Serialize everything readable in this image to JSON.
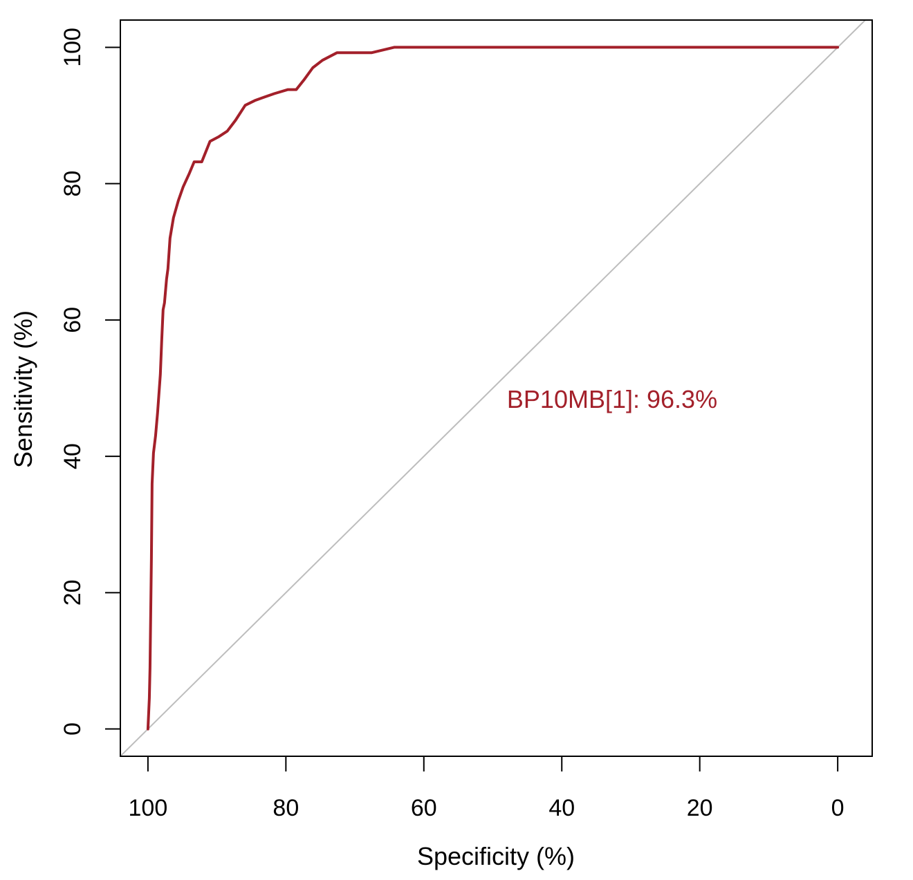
{
  "chart_data": {
    "type": "line",
    "title": "",
    "xlabel": "Specificity (%)",
    "ylabel": "Sensitivity (%)",
    "x_reversed": true,
    "xlim": [
      104,
      -5
    ],
    "ylim": [
      -4,
      104
    ],
    "x_ticks": [
      100,
      80,
      60,
      40,
      20,
      0
    ],
    "y_ticks": [
      0,
      20,
      40,
      60,
      80,
      100
    ],
    "grid": false,
    "colors": {
      "roc": "#a3202a",
      "diagonal": "#bdbdbd",
      "axis": "#000000"
    },
    "annotation": {
      "text": "BP10MB[1]: 96.3%"
    },
    "series": [
      {
        "specificity": [
          100,
          99.8,
          99.7,
          99.6,
          99.5,
          99.4,
          99.2,
          98.9,
          98.6,
          98.2,
          98.0,
          97.8,
          97.6,
          97.3,
          97.1,
          96.8,
          96.3,
          95.6,
          94.9,
          94.0,
          93.3,
          92.9,
          92.2,
          91.0,
          89.7,
          88.5,
          87.3,
          85.9,
          84.5,
          83.1,
          81.7,
          79.7,
          78.5,
          77.4,
          76.1,
          74.7,
          72.6,
          70.4,
          67.6,
          64.3,
          60.0,
          40.0,
          20.0,
          0.0
        ],
        "sensitivity": [
          0,
          4.5,
          9.0,
          17.0,
          25.0,
          36.0,
          40.5,
          43.0,
          46.5,
          52.0,
          57.0,
          61.5,
          62.5,
          66.0,
          67.5,
          72.0,
          75.0,
          77.5,
          79.5,
          81.5,
          83.2,
          83.2,
          83.2,
          86.2,
          86.9,
          87.7,
          89.3,
          91.5,
          92.2,
          92.7,
          93.2,
          93.8,
          93.8,
          95.2,
          97.0,
          98.1,
          99.2,
          99.2,
          99.2,
          100,
          100,
          100,
          100,
          100
        ]
      }
    ]
  }
}
